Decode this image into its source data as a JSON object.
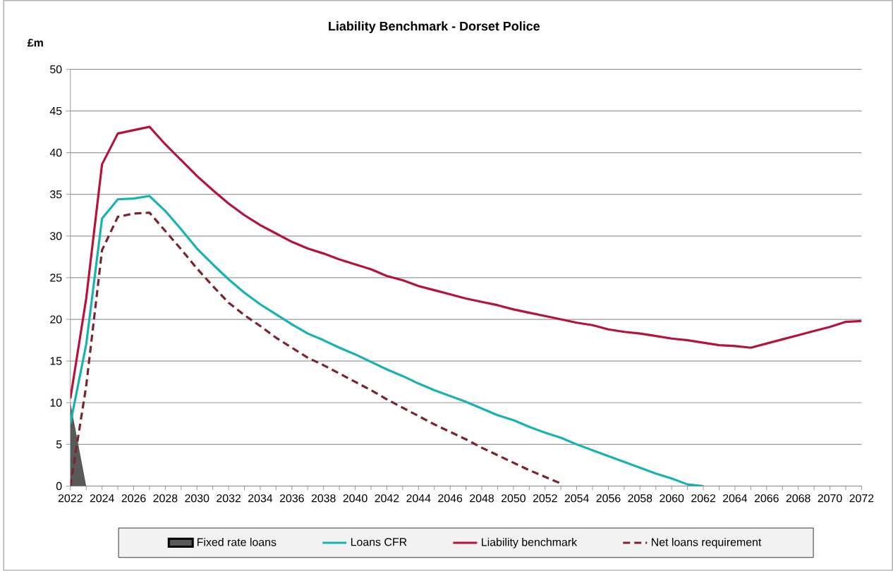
{
  "chart_data": {
    "type": "line",
    "title": "Liability Benchmark - Dorset Police",
    "ylabel": "£m",
    "x": [
      2022,
      2023,
      2024,
      2025,
      2026,
      2027,
      2028,
      2029,
      2030,
      2031,
      2032,
      2033,
      2034,
      2035,
      2036,
      2037,
      2038,
      2039,
      2040,
      2041,
      2042,
      2043,
      2044,
      2045,
      2046,
      2047,
      2048,
      2049,
      2050,
      2051,
      2052,
      2053,
      2054,
      2055,
      2056,
      2057,
      2058,
      2059,
      2060,
      2061,
      2062,
      2063,
      2064,
      2065,
      2066,
      2067,
      2068,
      2069,
      2070,
      2071,
      2072
    ],
    "xlim": [
      2022,
      2072
    ],
    "xticks": [
      2022,
      2024,
      2026,
      2028,
      2030,
      2032,
      2034,
      2036,
      2038,
      2040,
      2042,
      2044,
      2046,
      2048,
      2050,
      2052,
      2054,
      2056,
      2058,
      2060,
      2062,
      2064,
      2066,
      2068,
      2070,
      2072
    ],
    "ylim": [
      0,
      50
    ],
    "yticks": [
      0,
      5,
      10,
      15,
      20,
      25,
      30,
      35,
      40,
      45,
      50
    ],
    "grid": "y",
    "legend": "bottom",
    "marker": "none",
    "series": [
      {
        "name": "Fixed rate loans",
        "type": "area",
        "color": "#595959",
        "x": [
          2022,
          2023
        ],
        "values": [
          10,
          0
        ]
      },
      {
        "name": "Loans CFR",
        "color": "#17b3b3",
        "values": [
          7.5,
          17,
          32.1,
          34.4,
          34.5,
          34.8,
          33.0,
          30.8,
          28.5,
          26.6,
          24.8,
          23.2,
          21.8,
          20.6,
          19.4,
          18.3,
          17.5,
          16.6,
          15.8,
          14.9,
          14.0,
          13.2,
          12.3,
          11.5,
          10.8,
          10.1,
          9.3,
          8.5,
          7.9,
          7.1,
          6.4,
          5.8,
          5.0,
          4.3,
          3.6,
          2.9,
          2.2,
          1.5,
          0.9,
          0.2,
          0,
          null,
          null,
          null,
          null,
          null,
          null,
          null,
          null,
          null,
          null
        ]
      },
      {
        "name": "Liability benchmark",
        "color": "#b5123e",
        "values": [
          10.5,
          22.5,
          38.6,
          42.3,
          42.7,
          43.1,
          41.0,
          39.1,
          37.2,
          35.5,
          33.9,
          32.5,
          31.3,
          30.3,
          29.3,
          28.5,
          27.9,
          27.2,
          26.6,
          26.0,
          25.2,
          24.7,
          24.0,
          23.5,
          23.0,
          22.5,
          22.1,
          21.7,
          21.2,
          20.8,
          20.4,
          20.0,
          19.6,
          19.3,
          18.8,
          18.5,
          18.3,
          18.0,
          17.7,
          17.5,
          17.2,
          16.9,
          16.8,
          16.6,
          17.1,
          17.6,
          18.1,
          18.6,
          19.1,
          19.7,
          19.8
        ]
      },
      {
        "name": "Net loans requirement",
        "color": "#7a2430",
        "line_style": "dashed",
        "values": [
          0,
          12,
          28.3,
          32.3,
          32.7,
          32.8,
          30.6,
          28.4,
          26.1,
          24.0,
          22.0,
          20.5,
          19.2,
          17.8,
          16.6,
          15.4,
          14.5,
          13.5,
          12.5,
          11.5,
          10.4,
          9.4,
          8.4,
          7.4,
          6.5,
          5.6,
          4.6,
          3.7,
          2.8,
          1.9,
          1.1,
          0.3,
          null,
          null,
          null,
          null,
          null,
          null,
          null,
          null,
          null,
          null,
          null,
          null,
          null,
          null,
          null,
          null,
          null,
          null,
          null
        ]
      }
    ]
  }
}
